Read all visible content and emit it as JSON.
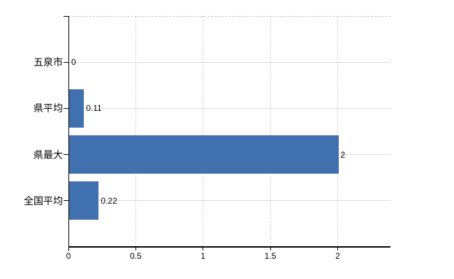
{
  "chart_data": {
    "type": "bar",
    "orientation": "horizontal",
    "title": "",
    "categories": [
      "五泉市",
      "県平均",
      "県最大",
      "全国平均"
    ],
    "values": [
      0,
      0.11,
      2,
      0.22
    ],
    "value_labels": [
      "0",
      "0.11",
      "2",
      "0.22"
    ],
    "series": [
      {
        "name": "",
        "values": [
          0,
          0.11,
          2,
          0.22
        ]
      }
    ],
    "x_ticks": [
      0,
      0.5,
      1,
      1.5,
      2
    ],
    "x_tick_labels": [
      "0",
      "0.5",
      "1",
      "1.5",
      "2"
    ],
    "xlim": [
      0,
      2.4
    ],
    "ylabel": "",
    "xlabel": "",
    "grid": true,
    "legend_position": "none",
    "colors": {
      "bar": "#4170af",
      "axis": "#000000",
      "h_gridline": "#d8dcd8",
      "v_gridline": "#d3d3d3",
      "top_border": "#c9c9c9",
      "background": "#ffffff",
      "text": "#000000"
    }
  }
}
